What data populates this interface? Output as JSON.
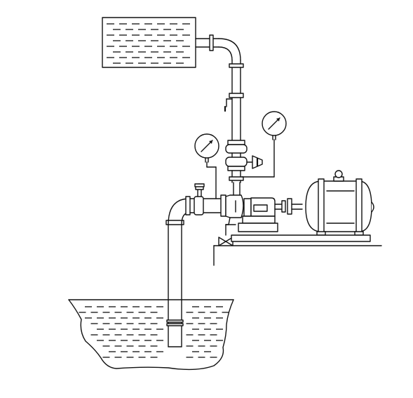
{
  "figure": {
    "kind": "schematic",
    "components": [
      "upper-tank",
      "discharge-pipe",
      "discharge-pressure-gauge",
      "suction-vacuum-gauge",
      "priming-valve",
      "suction-pipe",
      "lower-reservoir",
      "centrifugal-pump",
      "coupling",
      "electric-motor",
      "base-plate",
      "floor"
    ]
  },
  "colors": {
    "line": "#111111",
    "background": "#ffffff"
  }
}
